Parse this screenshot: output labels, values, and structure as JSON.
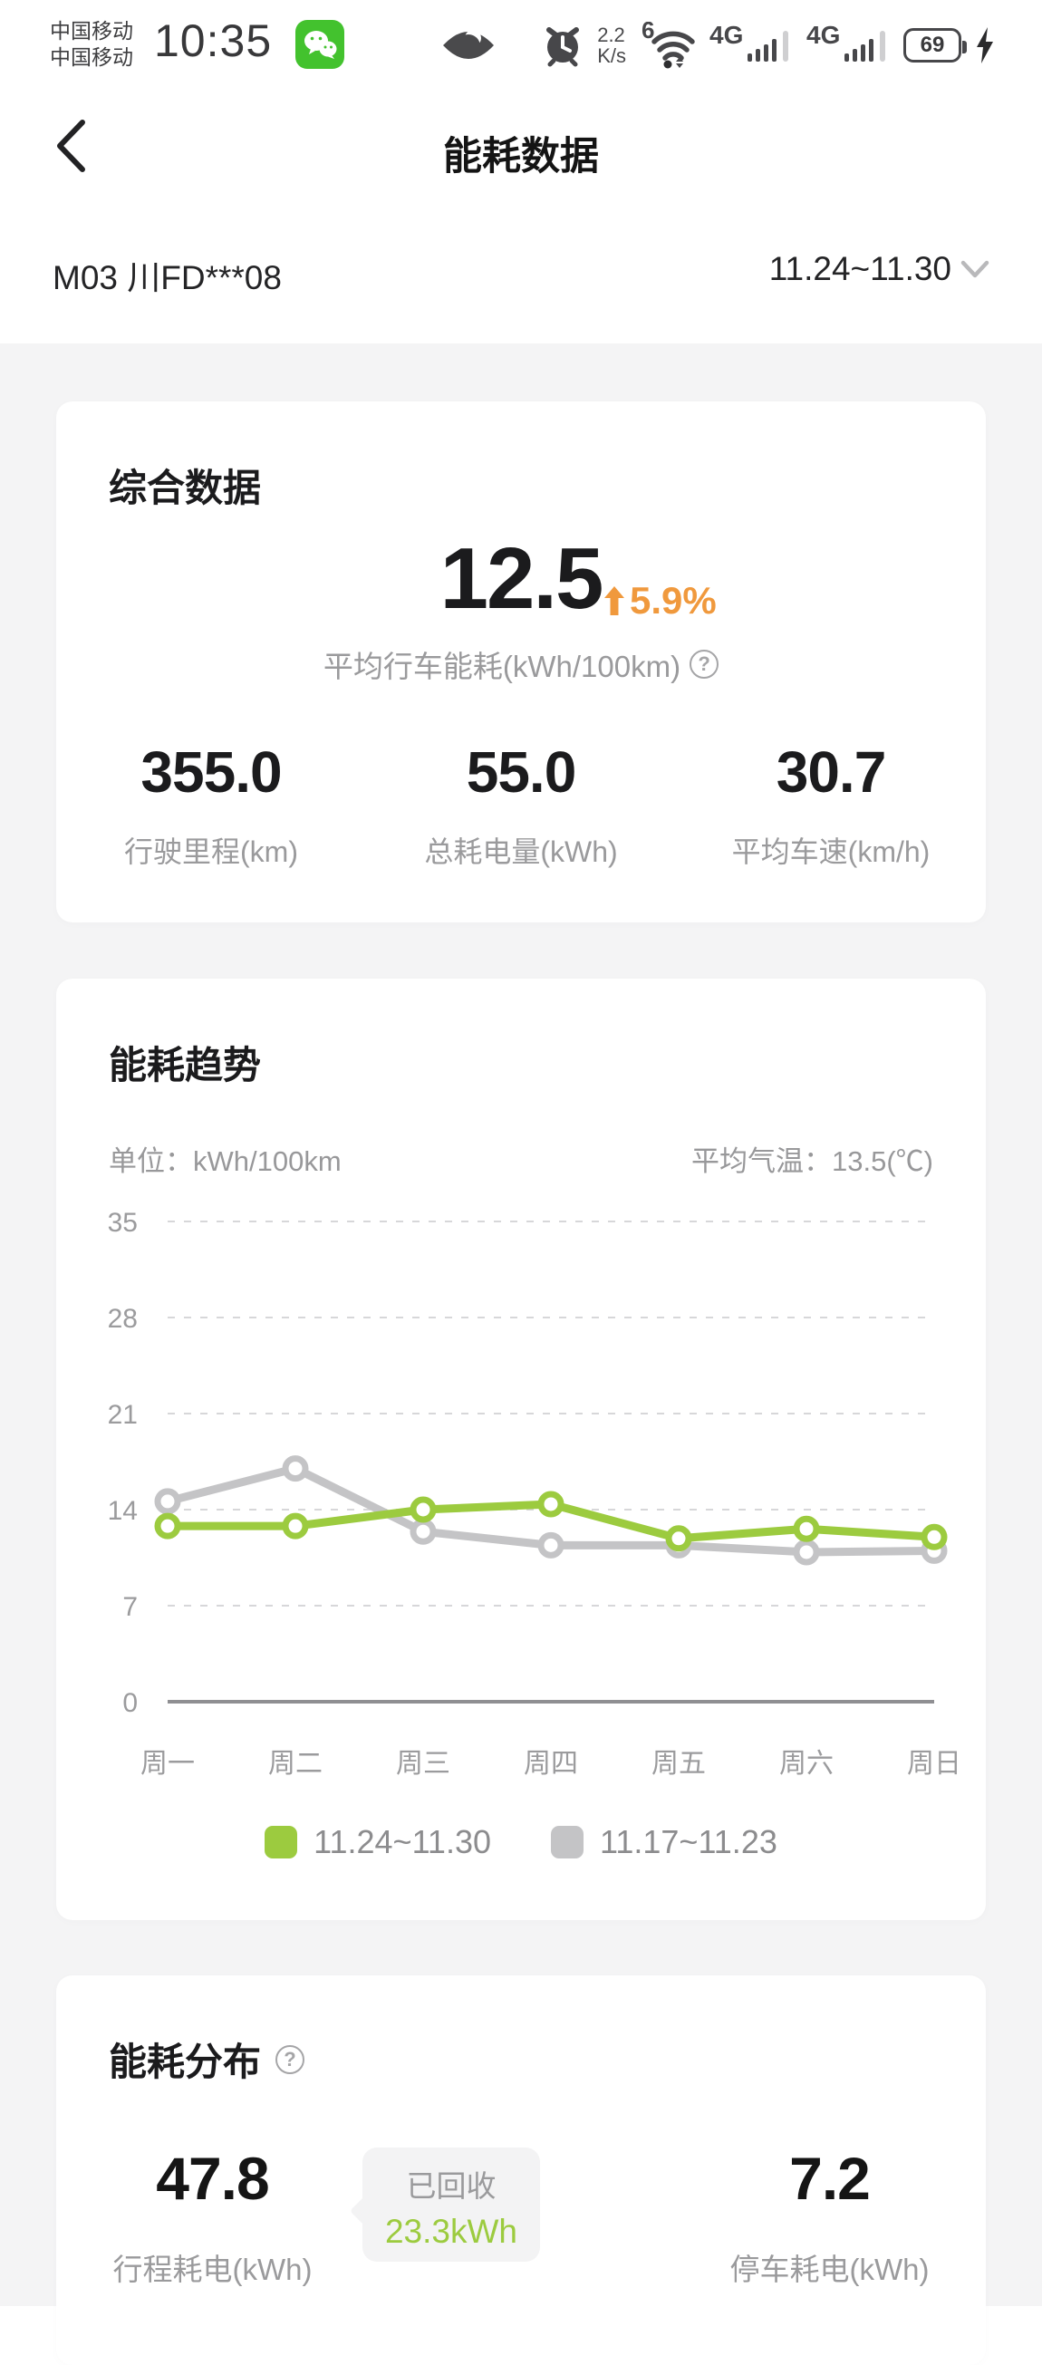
{
  "status_bar": {
    "carrier1": "中国移动",
    "carrier2": "中国移动",
    "time": "10:35",
    "net_speed_top": "2.2",
    "net_speed_bottom": "K/s",
    "wifi_label": "6",
    "sim1_label": "4G",
    "sim2_label": "4G",
    "battery_percent": "69"
  },
  "header": {
    "title": "能耗数据"
  },
  "vehicle_bar": {
    "vehicle": "M03 川FD***08",
    "date_range": "11.24~11.30"
  },
  "summary_card": {
    "title": "综合数据",
    "main_value": "12.5",
    "delta": "5.9%",
    "main_label": "平均行车能耗(kWh/100km)",
    "help_icon": "?",
    "stats": [
      {
        "value": "355.0",
        "label": "行驶里程(km)"
      },
      {
        "value": "55.0",
        "label": "总耗电量(kWh)"
      },
      {
        "value": "30.7",
        "label": "平均车速(km/h)"
      }
    ]
  },
  "trend_card": {
    "title": "能耗趋势",
    "unit_label": "单位：kWh/100km",
    "temp_label": "平均气温：13.5(℃)"
  },
  "chart_data": {
    "type": "line",
    "title": "能耗趋势",
    "ylabel": "kWh/100km",
    "categories": [
      "周一",
      "周二",
      "周三",
      "周四",
      "周五",
      "周六",
      "周日"
    ],
    "series": [
      {
        "name": "11.24~11.30",
        "color": "#9ccb3f",
        "values": [
          12.8,
          12.8,
          14.0,
          14.4,
          11.9,
          12.6,
          12.0
        ]
      },
      {
        "name": "11.17~11.23",
        "color": "#c4c4c6",
        "values": [
          14.6,
          17.0,
          12.4,
          11.4,
          11.4,
          10.9,
          11.0
        ]
      }
    ],
    "yticks": [
      0,
      7,
      14,
      21,
      28,
      35
    ],
    "ylim": [
      0,
      35
    ],
    "grid": "dashed-horizontal",
    "legend_position": "bottom"
  },
  "distribution_card": {
    "title": "能耗分布",
    "help_icon": "?",
    "left": {
      "value": "47.8",
      "label": "行程耗电(kWh)"
    },
    "recovered": {
      "label": "已回收",
      "value": "23.3kWh"
    },
    "right": {
      "value": "7.2",
      "label": "停车耗电(kWh)"
    }
  },
  "colors": {
    "accent_green": "#9ccb3f",
    "accent_orange": "#f0993d",
    "series_gray": "#c4c4c6",
    "text_dark": "#1b1b1d",
    "text_gray": "#9a9a9c",
    "page_bg": "#f4f4f5",
    "card_bg": "#ffffff"
  }
}
